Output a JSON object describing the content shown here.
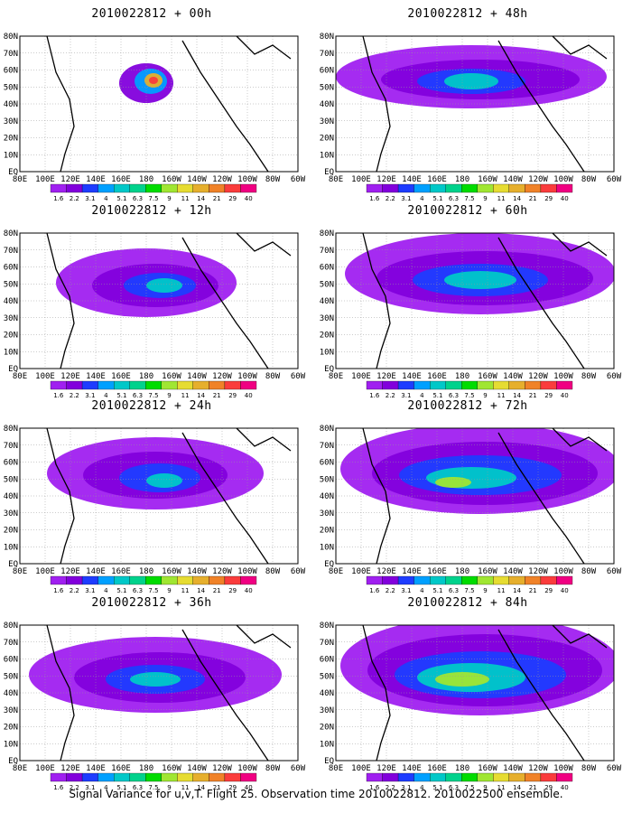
{
  "caption": "Signal Variance for u,v,T. Flight 25. Observation time 2010022812. 2010022500 ensemble.",
  "lat_labels": [
    "80N",
    "70N",
    "60N",
    "50N",
    "40N",
    "30N",
    "20N",
    "10N",
    "EQ"
  ],
  "lon_labels": [
    "80E",
    "100E",
    "120E",
    "140E",
    "160E",
    "180",
    "160W",
    "140W",
    "120W",
    "100W",
    "80W",
    "60W"
  ],
  "colorbar": {
    "labels": [
      "1.6",
      "2.2",
      "3.1",
      "4",
      "5.1",
      "6.3",
      "7.5",
      "9",
      "11",
      "14",
      "21",
      "29",
      "40"
    ],
    "colors": [
      "#a020f0",
      "#8200dc",
      "#1e3cff",
      "#00a0ff",
      "#00c8c8",
      "#00d28c",
      "#00dc00",
      "#a0e632",
      "#e6dc32",
      "#e6af2d",
      "#f08228",
      "#fa3c3c",
      "#f00082"
    ]
  },
  "panels": [
    {
      "title": "2010022812 + 00h"
    },
    {
      "title": "2010022812 + 48h"
    },
    {
      "title": "2010022812 + 12h"
    },
    {
      "title": "2010022812 + 60h"
    },
    {
      "title": "2010022812 + 24h"
    },
    {
      "title": "2010022812 + 72h"
    },
    {
      "title": "2010022812 + 36h"
    },
    {
      "title": "2010022812 + 84h"
    }
  ]
}
